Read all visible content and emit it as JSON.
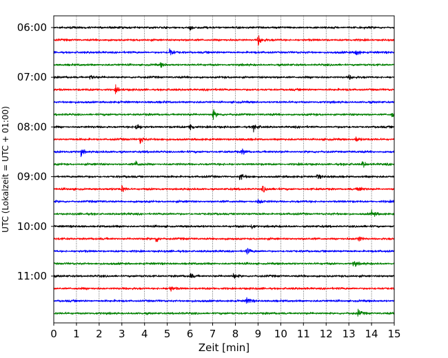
{
  "chart_data": {
    "type": "line",
    "title": "",
    "xlabel": "Zeit  [min]",
    "ylabel": "UTC (Lokalzeit = UTC + 01:00)",
    "xlim": [
      0,
      15
    ],
    "x_ticks": [
      "0",
      "1",
      "2",
      "3",
      "4",
      "5",
      "6",
      "7",
      "8",
      "9",
      "10",
      "11",
      "12",
      "13",
      "14",
      "15"
    ],
    "y_ticks": [
      {
        "time": "06:00",
        "trace": 0
      },
      {
        "time": "07:00",
        "trace": 4
      },
      {
        "time": "08:00",
        "trace": 8
      },
      {
        "time": "09:00",
        "trace": 12
      },
      {
        "time": "10:00",
        "trace": 16
      },
      {
        "time": "11:00",
        "trace": 20
      }
    ],
    "grid": "vertical dotted at each minute",
    "colors": [
      "#000000",
      "#ff0000",
      "#0000ff",
      "#008000"
    ],
    "trace_interval_minutes": 15,
    "trace_count": 24,
    "events": [
      {
        "trace": 0,
        "x": 6.0,
        "amp": 0.8
      },
      {
        "trace": 1,
        "x": 9.0,
        "amp": 2.2
      },
      {
        "trace": 2,
        "x": 5.1,
        "amp": 1.8
      },
      {
        "trace": 2,
        "x": 13.3,
        "amp": 1.6
      },
      {
        "trace": 3,
        "x": 4.7,
        "amp": 0.8
      },
      {
        "trace": 4,
        "x": 1.6,
        "amp": 0.9
      },
      {
        "trace": 4,
        "x": 13.0,
        "amp": 0.8
      },
      {
        "trace": 5,
        "x": 2.7,
        "amp": 1.3
      },
      {
        "trace": 7,
        "x": 7.0,
        "amp": 1.9
      },
      {
        "trace": 7,
        "x": 14.9,
        "amp": 1.2
      },
      {
        "trace": 8,
        "x": 3.6,
        "amp": 1.8
      },
      {
        "trace": 8,
        "x": 6.0,
        "amp": 2.0
      },
      {
        "trace": 8,
        "x": 8.8,
        "amp": 1.5
      },
      {
        "trace": 9,
        "x": 3.8,
        "amp": 1.8
      },
      {
        "trace": 9,
        "x": 13.3,
        "amp": 1.2
      },
      {
        "trace": 10,
        "x": 1.2,
        "amp": 1.3
      },
      {
        "trace": 10,
        "x": 8.3,
        "amp": 1.2
      },
      {
        "trace": 11,
        "x": 3.6,
        "amp": 1.1
      },
      {
        "trace": 11,
        "x": 13.6,
        "amp": 1.4
      },
      {
        "trace": 12,
        "x": 8.2,
        "amp": 1.4
      },
      {
        "trace": 12,
        "x": 11.6,
        "amp": 1.0
      },
      {
        "trace": 13,
        "x": 3.0,
        "amp": 1.4
      },
      {
        "trace": 13,
        "x": 9.2,
        "amp": 1.4
      },
      {
        "trace": 13,
        "x": 13.4,
        "amp": 1.2
      },
      {
        "trace": 14,
        "x": 9.0,
        "amp": 1.1
      },
      {
        "trace": 15,
        "x": 14.0,
        "amp": 1.2
      },
      {
        "trace": 16,
        "x": 8.7,
        "amp": 1.0
      },
      {
        "trace": 17,
        "x": 4.5,
        "amp": 1.4
      },
      {
        "trace": 17,
        "x": 13.4,
        "amp": 1.2
      },
      {
        "trace": 18,
        "x": 8.5,
        "amp": 1.3
      },
      {
        "trace": 19,
        "x": 13.2,
        "amp": 1.3
      },
      {
        "trace": 20,
        "x": 6.0,
        "amp": 1.0
      },
      {
        "trace": 20,
        "x": 7.9,
        "amp": 1.0
      },
      {
        "trace": 21,
        "x": 5.1,
        "amp": 1.2
      },
      {
        "trace": 22,
        "x": 8.5,
        "amp": 1.6
      },
      {
        "trace": 23,
        "x": 13.4,
        "amp": 1.2
      }
    ]
  }
}
